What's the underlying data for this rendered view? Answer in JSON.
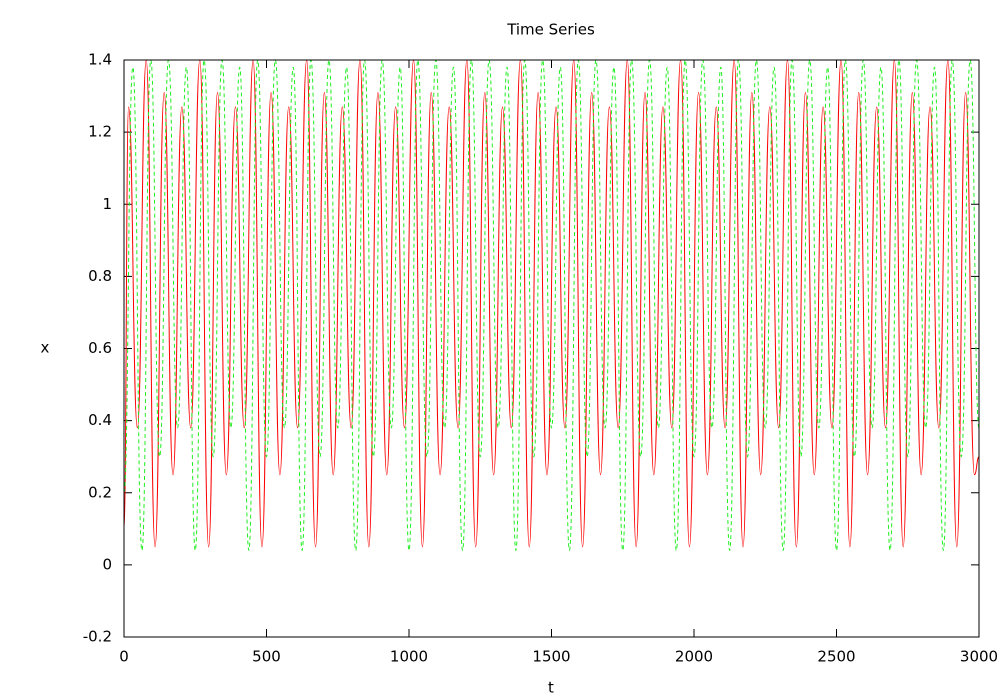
{
  "chart_data": {
    "type": "line",
    "title": "Time Series",
    "xlabel": "t",
    "ylabel": "x",
    "xlim": [
      0,
      3000
    ],
    "xticks": [
      0,
      500,
      1000,
      1500,
      2000,
      2500,
      3000
    ],
    "ylim": [
      -0.2,
      1.4
    ],
    "yticks": [
      -0.2,
      0,
      0.2,
      0.4,
      0.6,
      0.8,
      1,
      1.2,
      1.4
    ],
    "grid": false,
    "series": [
      {
        "color": "#ff0000",
        "dash": false,
        "x": [
          0,
          16,
          47,
          78,
          109,
          141,
          172,
          203,
          234,
          266,
          297,
          328,
          359,
          391,
          422,
          453,
          484,
          516,
          547,
          578,
          609,
          641,
          672,
          703,
          734,
          766,
          797,
          828,
          859,
          891,
          922,
          953,
          984,
          1016,
          1047,
          1078,
          1109,
          1141,
          1172,
          1203,
          1234,
          1266,
          1297,
          1328,
          1359,
          1391,
          1422,
          1453,
          1484,
          1516,
          1547,
          1578,
          1609,
          1641,
          1672,
          1703,
          1734,
          1766,
          1797,
          1828,
          1859,
          1891,
          1922,
          1953,
          1984,
          2016,
          2047,
          2078,
          2109,
          2141,
          2172,
          2203,
          2234,
          2266,
          2297,
          2328,
          2359,
          2391,
          2422,
          2453,
          2484,
          2516,
          2547,
          2578,
          2609,
          2641,
          2672,
          2703,
          2734,
          2766,
          2797,
          2828,
          2859,
          2891,
          2922,
          2953,
          2984,
          3000
        ],
        "values": [
          0.1,
          1.27,
          0.38,
          1.4,
          0.05,
          1.31,
          0.25,
          1.27,
          0.38,
          1.4,
          0.05,
          1.31,
          0.25,
          1.27,
          0.38,
          1.4,
          0.05,
          1.31,
          0.25,
          1.27,
          0.38,
          1.4,
          0.05,
          1.31,
          0.25,
          1.27,
          0.38,
          1.4,
          0.05,
          1.31,
          0.25,
          1.27,
          0.38,
          1.4,
          0.05,
          1.31,
          0.25,
          1.27,
          0.38,
          1.4,
          0.05,
          1.31,
          0.25,
          1.27,
          0.38,
          1.4,
          0.05,
          1.31,
          0.25,
          1.27,
          0.38,
          1.4,
          0.05,
          1.31,
          0.25,
          1.27,
          0.38,
          1.4,
          0.05,
          1.31,
          0.25,
          1.27,
          0.38,
          1.4,
          0.05,
          1.31,
          0.25,
          1.27,
          0.38,
          1.4,
          0.05,
          1.31,
          0.25,
          1.27,
          0.38,
          1.4,
          0.05,
          1.31,
          0.25,
          1.27,
          0.38,
          1.4,
          0.05,
          1.31,
          0.25,
          1.27,
          0.38,
          1.4,
          0.05,
          1.31,
          0.25,
          1.27,
          0.38,
          1.4,
          0.05,
          1.31,
          0.25,
          0.3
        ]
      },
      {
        "color": "#22ee22",
        "dash": true,
        "x": [
          0,
          31,
          63,
          94,
          125,
          156,
          188,
          219,
          250,
          281,
          313,
          344,
          375,
          406,
          438,
          469,
          500,
          531,
          563,
          594,
          625,
          656,
          688,
          719,
          750,
          781,
          813,
          844,
          875,
          906,
          938,
          969,
          1000,
          1031,
          1063,
          1094,
          1125,
          1156,
          1188,
          1219,
          1250,
          1281,
          1313,
          1344,
          1375,
          1406,
          1438,
          1469,
          1500,
          1531,
          1563,
          1594,
          1625,
          1656,
          1688,
          1719,
          1750,
          1781,
          1813,
          1844,
          1875,
          1906,
          1938,
          1969,
          2000,
          2031,
          2063,
          2094,
          2125,
          2156,
          2188,
          2219,
          2250,
          2281,
          2313,
          2344,
          2375,
          2406,
          2438,
          2469,
          2500,
          2531,
          2563,
          2594,
          2625,
          2656,
          2688,
          2719,
          2750,
          2781,
          2813,
          2844,
          2875,
          2906,
          2938,
          2969,
          3000
        ],
        "values": [
          0.2,
          1.38,
          0.04,
          1.4,
          0.3,
          1.4,
          0.38,
          1.38,
          0.04,
          1.4,
          0.3,
          1.4,
          0.38,
          1.38,
          0.04,
          1.4,
          0.3,
          1.4,
          0.38,
          1.38,
          0.04,
          1.4,
          0.3,
          1.4,
          0.38,
          1.38,
          0.04,
          1.4,
          0.3,
          1.4,
          0.38,
          1.38,
          0.04,
          1.4,
          0.3,
          1.4,
          0.38,
          1.38,
          0.04,
          1.4,
          0.3,
          1.4,
          0.38,
          1.38,
          0.04,
          1.4,
          0.3,
          1.4,
          0.38,
          1.38,
          0.04,
          1.4,
          0.3,
          1.4,
          0.38,
          1.38,
          0.04,
          1.4,
          0.3,
          1.4,
          0.38,
          1.38,
          0.04,
          1.4,
          0.3,
          1.4,
          0.38,
          1.38,
          0.04,
          1.4,
          0.3,
          1.4,
          0.38,
          1.38,
          0.04,
          1.4,
          0.3,
          1.4,
          0.38,
          1.38,
          0.04,
          1.4,
          0.3,
          1.4,
          0.38,
          1.38,
          0.04,
          1.4,
          0.3,
          1.4,
          0.38,
          1.38,
          0.04,
          1.4,
          0.3,
          1.4,
          0.38
        ]
      }
    ]
  }
}
